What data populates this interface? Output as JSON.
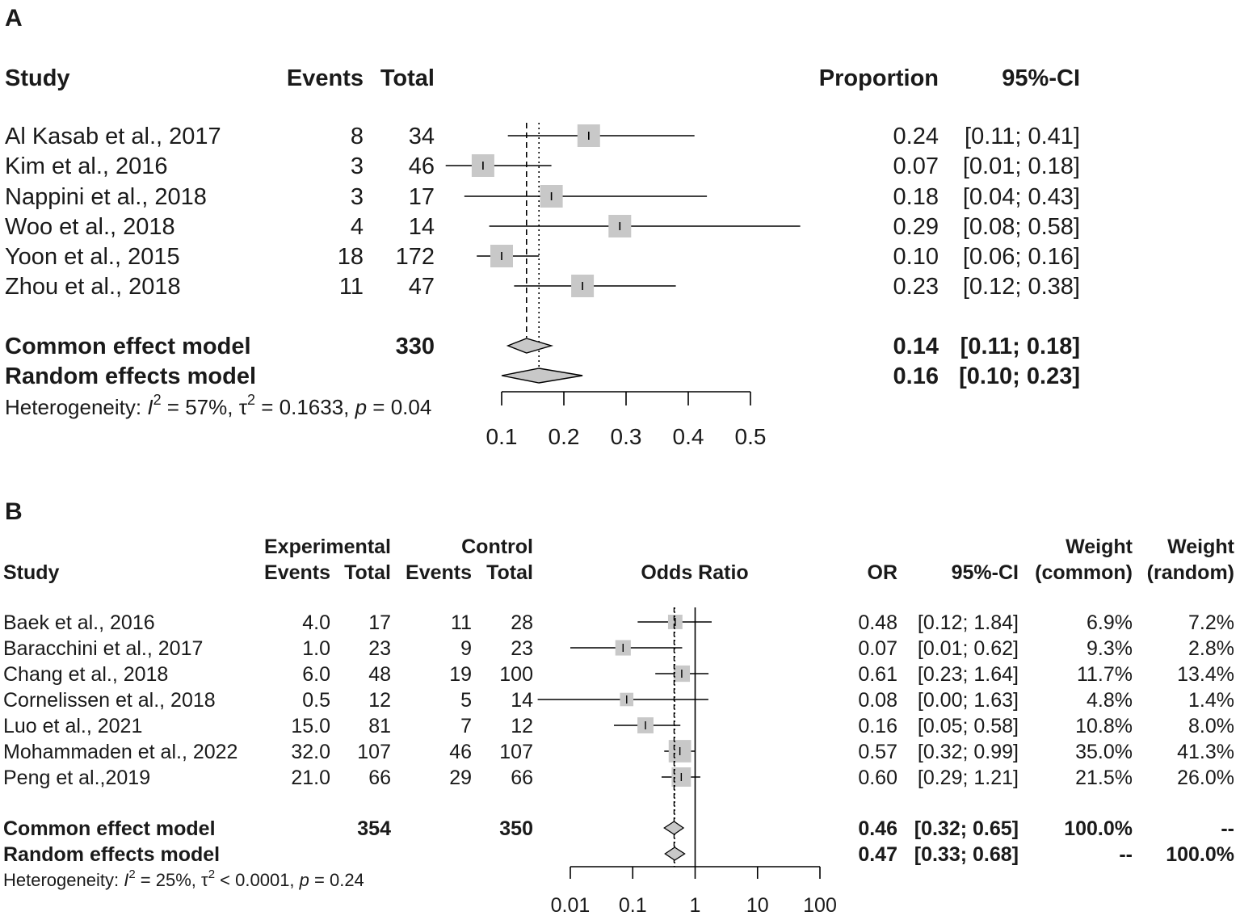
{
  "chart_data": [
    {
      "panel": "A",
      "type": "forest",
      "headers": {
        "study": "Study",
        "events": "Events",
        "total": "Total",
        "effect": "Proportion",
        "ci": "95%-CI"
      },
      "studies": [
        {
          "name": "Al Kasab et al., 2017",
          "events": "8",
          "total": "34",
          "est": 0.24,
          "lo": 0.11,
          "hi": 0.41,
          "w": 1.0,
          "est_text": "0.24",
          "ci_text": "[0.11; 0.41]"
        },
        {
          "name": "Kim et al., 2016",
          "events": "3",
          "total": "46",
          "est": 0.07,
          "lo": 0.01,
          "hi": 0.18,
          "w": 1.0,
          "est_text": "0.07",
          "ci_text": "[0.01; 0.18]"
        },
        {
          "name": "Nappini et al., 2018",
          "events": "3",
          "total": "17",
          "est": 0.18,
          "lo": 0.04,
          "hi": 0.43,
          "w": 1.0,
          "est_text": "0.18",
          "ci_text": "[0.04; 0.43]"
        },
        {
          "name": "Woo et al., 2018",
          "events": "4",
          "total": "14",
          "est": 0.29,
          "lo": 0.08,
          "hi": 0.58,
          "w": 1.0,
          "est_text": "0.29",
          "ci_text": "[0.08; 0.58]"
        },
        {
          "name": "Yoon et al., 2015",
          "events": "18",
          "total": "172",
          "est": 0.1,
          "lo": 0.06,
          "hi": 0.16,
          "w": 1.0,
          "est_text": "0.10",
          "ci_text": "[0.06; 0.16]"
        },
        {
          "name": "Zhou et al., 2018",
          "events": "11",
          "total": "47",
          "est": 0.23,
          "lo": 0.12,
          "hi": 0.38,
          "w": 1.0,
          "est_text": "0.23",
          "ci_text": "[0.12; 0.38]"
        }
      ],
      "models": [
        {
          "name": "Common effect model",
          "total": "330",
          "est": 0.14,
          "lo": 0.11,
          "hi": 0.18,
          "est_text": "0.14",
          "ci_text": "[0.11; 0.18]",
          "line": "dashed"
        },
        {
          "name": "Random effects model",
          "total": "",
          "est": 0.16,
          "lo": 0.1,
          "hi": 0.23,
          "est_text": "0.16",
          "ci_text": "[0.10; 0.23]",
          "line": "dotted"
        }
      ],
      "heterogeneity": {
        "prefix": "Heterogeneity: ",
        "i_sym": "I",
        "sup1": "2",
        "mid": " = 57%, ",
        "tau_sym": "τ",
        "sup2": "2",
        "rest": " = 0.1633, ",
        "p_sym": "p",
        "tail": " = 0.04"
      },
      "scale": "linear",
      "xlim": [
        0.1,
        0.5
      ],
      "ticks": [
        0.1,
        0.2,
        0.3,
        0.4,
        0.5
      ],
      "tick_labels": [
        "0.1",
        "0.2",
        "0.3",
        "0.4",
        "0.5"
      ]
    },
    {
      "panel": "B",
      "type": "forest",
      "headers": {
        "study": "Study",
        "experimental": "Experimental",
        "control": "Control",
        "events": "Events",
        "total": "Total",
        "effect": "Odds Ratio",
        "or": "OR",
        "ci": "95%-CI",
        "weight": "Weight",
        "common": "(common)",
        "random": "(random)"
      },
      "studies": [
        {
          "name": "Baek et al., 2016",
          "e_events": "4.0",
          "e_total": "17",
          "c_events": "11",
          "c_total": "28",
          "est": 0.48,
          "lo": 0.12,
          "hi": 1.84,
          "w": 0.069,
          "est_text": "0.48",
          "ci_text": "[0.12; 1.84]",
          "w_common": "6.9%",
          "w_random": "7.2%"
        },
        {
          "name": "Baracchini et al., 2017",
          "e_events": "1.0",
          "e_total": "23",
          "c_events": "9",
          "c_total": "23",
          "est": 0.07,
          "lo": 0.01,
          "hi": 0.62,
          "w": 0.093,
          "est_text": "0.07",
          "ci_text": "[0.01; 0.62]",
          "w_common": "9.3%",
          "w_random": "2.8%"
        },
        {
          "name": "Chang et al., 2018",
          "e_events": "6.0",
          "e_total": "48",
          "c_events": "19",
          "c_total": "100",
          "est": 0.61,
          "lo": 0.23,
          "hi": 1.64,
          "w": 0.117,
          "est_text": "0.61",
          "ci_text": "[0.23; 1.64]",
          "w_common": "11.7%",
          "w_random": "13.4%"
        },
        {
          "name": "Cornelissen et al., 2018",
          "e_events": "0.5",
          "e_total": "12",
          "c_events": "5",
          "c_total": "14",
          "est": 0.08,
          "lo": 0.0,
          "hi": 1.63,
          "w": 0.048,
          "est_text": "0.08",
          "ci_text": "[0.00; 1.63]",
          "w_common": "4.8%",
          "w_random": "1.4%"
        },
        {
          "name": "Luo et al., 2021",
          "e_events": "15.0",
          "e_total": "81",
          "c_events": "7",
          "c_total": "12",
          "est": 0.16,
          "lo": 0.05,
          "hi": 0.58,
          "w": 0.108,
          "est_text": "0.16",
          "ci_text": "[0.05; 0.58]",
          "w_common": "10.8%",
          "w_random": "8.0%"
        },
        {
          "name": "Mohammaden et al., 2022",
          "e_events": "32.0",
          "e_total": "107",
          "c_events": "46",
          "c_total": "107",
          "est": 0.57,
          "lo": 0.32,
          "hi": 0.99,
          "w": 0.35,
          "est_text": "0.57",
          "ci_text": "[0.32; 0.99]",
          "w_common": "35.0%",
          "w_random": "41.3%"
        },
        {
          "name": "Peng et al.,2019",
          "e_events": "21.0",
          "e_total": "66",
          "c_events": "29",
          "c_total": "66",
          "est": 0.6,
          "lo": 0.29,
          "hi": 1.21,
          "w": 0.215,
          "est_text": "0.60",
          "ci_text": "[0.29; 1.21]",
          "w_common": "21.5%",
          "w_random": "26.0%"
        }
      ],
      "models": [
        {
          "name": "Common effect model",
          "e_total": "354",
          "c_total": "350",
          "est": 0.46,
          "lo": 0.32,
          "hi": 0.65,
          "est_text": "0.46",
          "ci_text": "[0.32; 0.65]",
          "w_common": "100.0%",
          "w_random": "--",
          "line": "dashed"
        },
        {
          "name": "Random effects model",
          "e_total": "",
          "c_total": "",
          "est": 0.47,
          "lo": 0.33,
          "hi": 0.68,
          "est_text": "0.47",
          "ci_text": "[0.33; 0.68]",
          "w_common": "--",
          "w_random": "100.0%",
          "line": "dotted"
        }
      ],
      "heterogeneity": {
        "prefix": "Heterogeneity: ",
        "i_sym": "I",
        "sup1": "2",
        "mid": " = 25%, ",
        "tau_sym": "τ",
        "sup2": "2",
        "rest": " < 0.0001, ",
        "p_sym": "p",
        "tail": " = 0.24"
      },
      "scale": "log",
      "null_value": 1,
      "xlim": [
        0.01,
        100
      ],
      "ticks": [
        0.01,
        0.1,
        1,
        10,
        100
      ],
      "tick_labels": [
        "0.01",
        "0.1",
        "1",
        "10",
        "100"
      ]
    }
  ],
  "colors": {
    "box": "#c8c8c8",
    "diamond": "#c8c8c8",
    "line": "#000000",
    "text": "#1a1a1a"
  }
}
